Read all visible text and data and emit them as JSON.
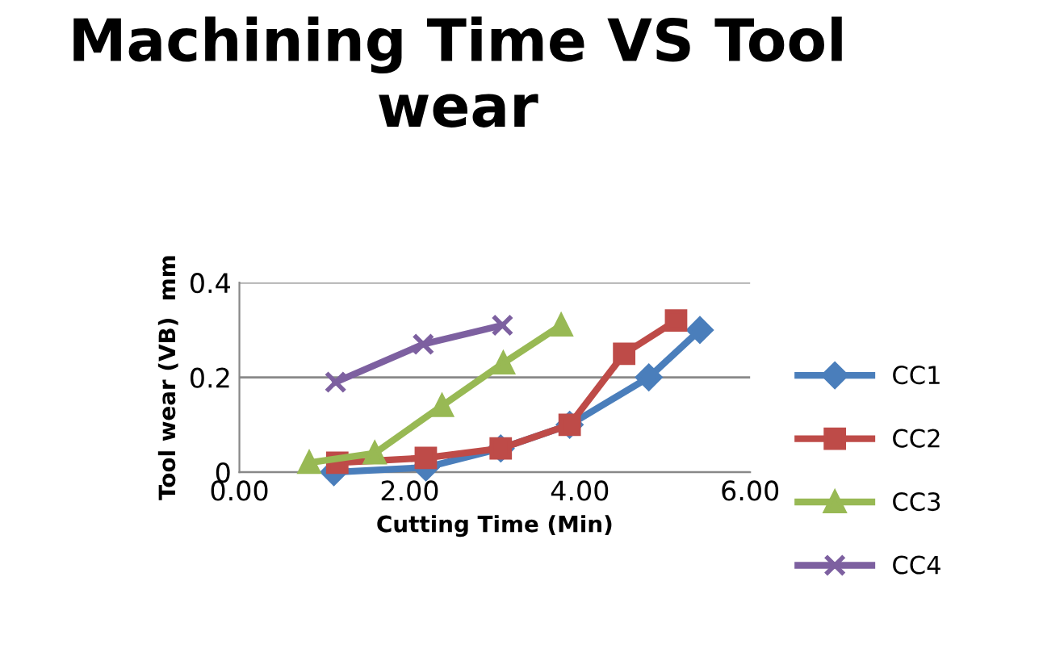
{
  "chart_data": {
    "type": "line",
    "title": "Machining Time VS Tool wear",
    "xlabel": "Cutting Time (Min)",
    "ylabel": "Tool wear (VB)  mm",
    "xlim": [
      0,
      6
    ],
    "xticks": [
      {
        "value": 0,
        "label": "0.00"
      },
      {
        "value": 2,
        "label": "2.00"
      },
      {
        "value": 4,
        "label": "4.00"
      },
      {
        "value": 6,
        "label": "6.00"
      }
    ],
    "ylim": [
      0,
      0.4
    ],
    "yticks": [
      0,
      0.2,
      0.4
    ],
    "grid": "y",
    "legend": "right",
    "series": [
      {
        "name": "CC1",
        "color": "#4a7ebb",
        "marker": "diamond",
        "x": [
          1.11,
          2.19,
          3.07,
          3.88,
          4.81,
          5.41
        ],
        "values": [
          0.0,
          0.01,
          0.05,
          0.1,
          0.2,
          0.3
        ]
      },
      {
        "name": "CC2",
        "color": "#be4b48",
        "marker": "square",
        "x": [
          1.15,
          2.19,
          3.07,
          3.88,
          4.52,
          5.13
        ],
        "values": [
          0.02,
          0.03,
          0.05,
          0.1,
          0.25,
          0.32
        ]
      },
      {
        "name": "CC3",
        "color": "#98b954",
        "marker": "triangle",
        "x": [
          0.82,
          1.59,
          2.38,
          3.1,
          3.78
        ],
        "values": [
          0.02,
          0.04,
          0.14,
          0.23,
          0.31
        ]
      },
      {
        "name": "CC4",
        "color": "#7d60a0",
        "marker": "cross",
        "x": [
          1.13,
          2.16,
          3.09
        ],
        "values": [
          0.19,
          0.27,
          0.31
        ]
      }
    ]
  }
}
